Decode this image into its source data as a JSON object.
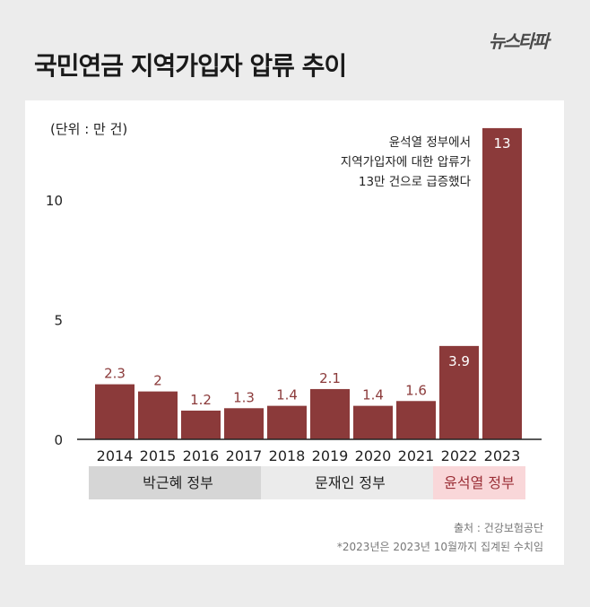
{
  "title": "국민연금 지역가입자 압류 추이",
  "logo": "뉴스타파",
  "unit_label": "(단위 : 만 건)",
  "annotation": [
    "윤석열 정부에서",
    "지역가입자에 대한 압류가",
    "13만 건으로 급증했다"
  ],
  "source": "출처 : 건강보험공단",
  "note": "*2023년은 2023년 10월까지 집계된 수치임",
  "eras": [
    {
      "label": "박근혜 정부",
      "color": "#d6d6d6",
      "from": 0,
      "to": 3
    },
    {
      "label": "문재인 정부",
      "color": "#ebebeb",
      "from": 4,
      "to": 7
    },
    {
      "label": "윤석열 정부",
      "color": "#f9d7d9",
      "from": 8,
      "to": 9,
      "text_color": "#9b2f37"
    }
  ],
  "colors": {
    "bar": "#8b3a3a",
    "label_dark": "#8b3a3a",
    "label_light": "#ffffff"
  },
  "chart_data": {
    "type": "bar",
    "categories": [
      "2014",
      "2015",
      "2016",
      "2017",
      "2018",
      "2019",
      "2020",
      "2021",
      "2022",
      "2023"
    ],
    "values": [
      2.3,
      2,
      1.2,
      1.3,
      1.4,
      2.1,
      1.4,
      1.6,
      3.9,
      13
    ],
    "value_labels": [
      "2.3",
      "2",
      "1.2",
      "1.3",
      "1.4",
      "2.1",
      "1.4",
      "1.6",
      "3.9",
      "13"
    ],
    "yticks": [
      0,
      5,
      10
    ],
    "ylim": [
      0,
      13
    ],
    "grid": false,
    "legend": "none"
  }
}
